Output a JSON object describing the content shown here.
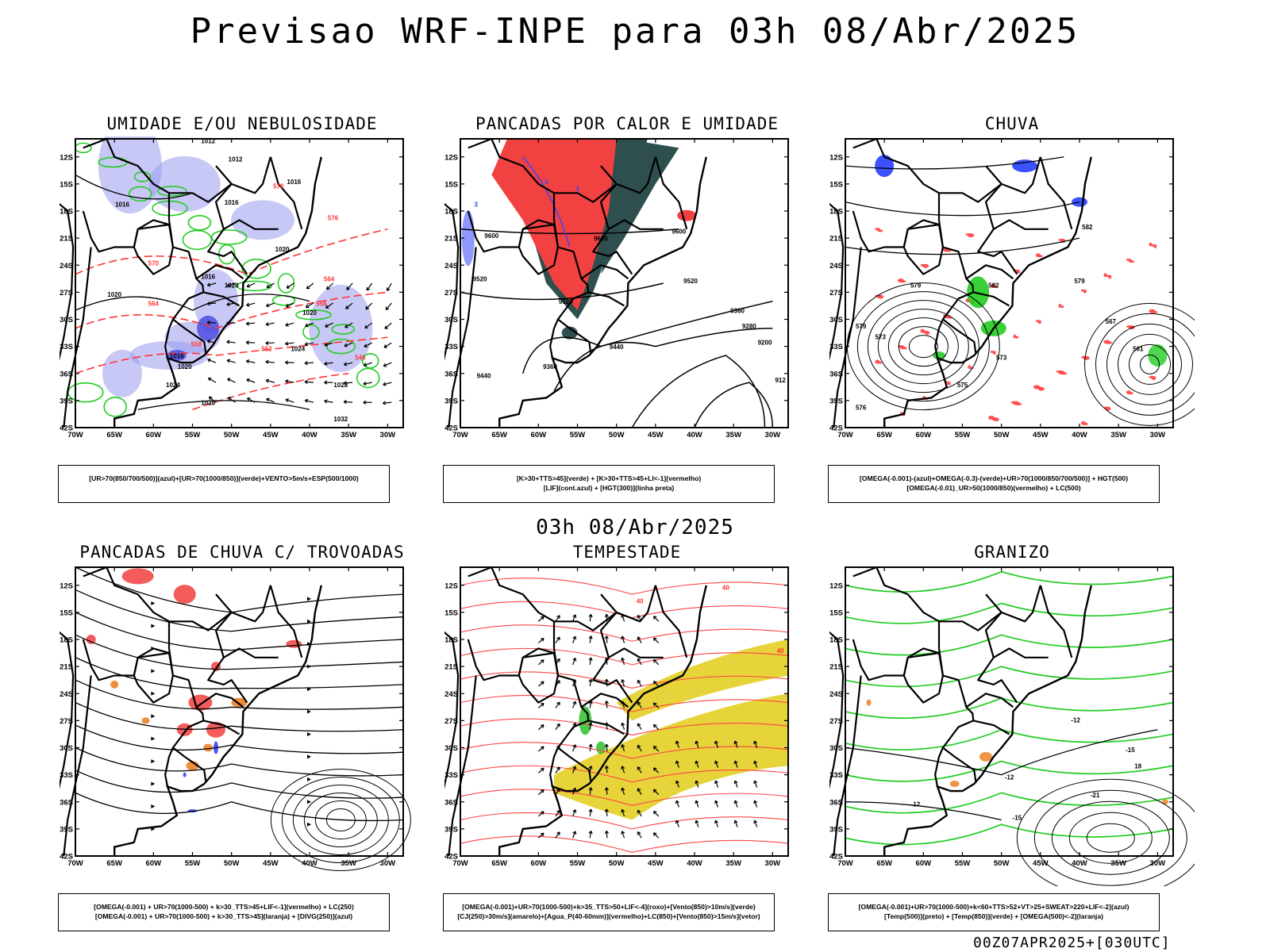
{
  "header": {
    "title": "Previsao WRF-INPE  para 03h 08/Abr/2025",
    "mid_stamp": "03h 08/Abr/2025",
    "run_stamp": "00Z07APR2025+[030UTC]"
  },
  "axes": {
    "lat_labels": [
      "12S",
      "15S",
      "18S",
      "21S",
      "24S",
      "27S",
      "30S",
      "33S",
      "36S",
      "39S",
      "42S"
    ],
    "lon_labels": [
      "70W",
      "65W",
      "60W",
      "55W",
      "50W",
      "45W",
      "40W",
      "35W",
      "30W"
    ],
    "lon_range": [
      -70,
      -28
    ],
    "lat_range": [
      -42,
      -10
    ]
  },
  "chart_data": [
    {
      "type": "map",
      "id": "umidade",
      "title": "UMIDADE E/OU NEBULOSIDADE",
      "legend": [
        "[UR>70(850/700/500)](azul)+[UR>70(1000/850)](verde)+VENTO>5m/s+ESP(500/1000)"
      ],
      "contour_labels": [
        {
          "text": "1012",
          "lon": -53,
          "lat": -10.5,
          "color": "#000000"
        },
        {
          "text": "1012",
          "lon": -49.5,
          "lat": -12.5,
          "color": "#000000"
        },
        {
          "text": "1016",
          "lon": -42,
          "lat": -15,
          "color": "#000000"
        },
        {
          "text": "1016",
          "lon": -64,
          "lat": -17.5,
          "color": "#000000"
        },
        {
          "text": "1016",
          "lon": -50,
          "lat": -17.3,
          "color": "#000000"
        },
        {
          "text": "1020",
          "lon": -43.5,
          "lat": -22.5,
          "color": "#000000"
        },
        {
          "text": "1016",
          "lon": -53,
          "lat": -25.5,
          "color": "#000000"
        },
        {
          "text": "1020",
          "lon": -50,
          "lat": -26.5,
          "color": "#000000"
        },
        {
          "text": "1020",
          "lon": -40,
          "lat": -29.5,
          "color": "#000000"
        },
        {
          "text": "1024",
          "lon": -41.5,
          "lat": -33.5,
          "color": "#000000"
        },
        {
          "text": "1016",
          "lon": -57,
          "lat": -34.3,
          "color": "#000000"
        },
        {
          "text": "1020",
          "lon": -56,
          "lat": -35.5,
          "color": "#000000"
        },
        {
          "text": "1020",
          "lon": -65,
          "lat": -27.5,
          "color": "#000000"
        },
        {
          "text": "1024",
          "lon": -57.5,
          "lat": -37.5,
          "color": "#000000"
        },
        {
          "text": "1028",
          "lon": -36,
          "lat": -37.5,
          "color": "#000000"
        },
        {
          "text": "1028",
          "lon": -53,
          "lat": -39.5,
          "color": "#000000"
        },
        {
          "text": "1032",
          "lon": -36,
          "lat": -41.3,
          "color": "#000000"
        },
        {
          "text": "570",
          "lon": -44,
          "lat": -15.5,
          "color": "#ff3333"
        },
        {
          "text": "576",
          "lon": -37,
          "lat": -19,
          "color": "#ff3333"
        },
        {
          "text": "570",
          "lon": -60,
          "lat": -24,
          "color": "#ff3333"
        },
        {
          "text": "564",
          "lon": -60,
          "lat": -28.5,
          "color": "#ff3333"
        },
        {
          "text": "558",
          "lon": -54.5,
          "lat": -33,
          "color": "#ff3333"
        },
        {
          "text": "558",
          "lon": -38.5,
          "lat": -28.5,
          "color": "#ff3333"
        },
        {
          "text": "564",
          "lon": -37.5,
          "lat": -25.8,
          "color": "#ff3333"
        },
        {
          "text": "552",
          "lon": -45.5,
          "lat": -33.5,
          "color": "#ff3333"
        },
        {
          "text": "546",
          "lon": -33.5,
          "lat": -34.5,
          "color": "#ff3333"
        }
      ]
    },
    {
      "type": "map",
      "id": "pancadas-calor",
      "title": "PANCADAS POR CALOR E UMIDADE",
      "legend": [
        "[K>30+TTS>45](verde) + [K>30+TTS>45+LI<-1](vermelho)",
        "[LIF](cont.azul) + [HGT(300)](linha preta)"
      ],
      "contour_labels": [
        {
          "text": "9600",
          "lon": -66,
          "lat": -21,
          "color": "#000000"
        },
        {
          "text": "9600",
          "lon": -52,
          "lat": -21.3,
          "color": "#000000"
        },
        {
          "text": "9600",
          "lon": -42,
          "lat": -20.5,
          "color": "#000000"
        },
        {
          "text": "9520",
          "lon": -67.5,
          "lat": -25.8,
          "color": "#000000"
        },
        {
          "text": "9520",
          "lon": -40.5,
          "lat": -26,
          "color": "#000000"
        },
        {
          "text": "9520",
          "lon": -56.5,
          "lat": -28.3,
          "color": "#000000"
        },
        {
          "text": "9360",
          "lon": -34.5,
          "lat": -29.3,
          "color": "#000000"
        },
        {
          "text": "9280",
          "lon": -33,
          "lat": -31,
          "color": "#000000"
        },
        {
          "text": "9200",
          "lon": -31,
          "lat": -32.8,
          "color": "#000000"
        },
        {
          "text": "9440",
          "lon": -50,
          "lat": -33.3,
          "color": "#000000"
        },
        {
          "text": "9360",
          "lon": -58.5,
          "lat": -35.5,
          "color": "#000000"
        },
        {
          "text": "9440",
          "lon": -67,
          "lat": -36.5,
          "color": "#000000"
        },
        {
          "text": "912",
          "lon": -29,
          "lat": -37,
          "color": "#000000"
        },
        {
          "text": "3",
          "lon": -59,
          "lat": -15,
          "color": "#3344ff"
        },
        {
          "text": "3",
          "lon": -55,
          "lat": -15.8,
          "color": "#3344ff"
        },
        {
          "text": "3",
          "lon": -68,
          "lat": -17.5,
          "color": "#3344ff"
        }
      ]
    },
    {
      "type": "map",
      "id": "chuva",
      "title": "CHUVA",
      "legend": [
        "[OMEGA(-0.001)-(azul)+OMEGA(-0.3)-(verde)+UR>70(1000/850/700/500)] + HGT(500)",
        "[OMEGA(-0.01)_UR>50(1000/850)(vermelho) + LC(500)"
      ],
      "contour_labels": [
        {
          "text": "582",
          "lon": -39,
          "lat": -20,
          "color": "#000000"
        },
        {
          "text": "579",
          "lon": -40,
          "lat": -26,
          "color": "#000000"
        },
        {
          "text": "582",
          "lon": -51,
          "lat": -26.5,
          "color": "#000000"
        },
        {
          "text": "579",
          "lon": -61,
          "lat": -26.5,
          "color": "#000000"
        },
        {
          "text": "579",
          "lon": -68,
          "lat": -31,
          "color": "#000000"
        },
        {
          "text": "573",
          "lon": -65.5,
          "lat": -32.2,
          "color": "#000000"
        },
        {
          "text": "573",
          "lon": -50,
          "lat": -34.5,
          "color": "#000000"
        },
        {
          "text": "567",
          "lon": -36,
          "lat": -30.5,
          "color": "#000000"
        },
        {
          "text": "561",
          "lon": -32.5,
          "lat": -33.5,
          "color": "#000000"
        },
        {
          "text": "575",
          "lon": -55,
          "lat": -37.5,
          "color": "#000000"
        },
        {
          "text": "576",
          "lon": -68,
          "lat": -40,
          "color": "#000000"
        }
      ]
    },
    {
      "type": "map",
      "id": "pancadas-trovoadas",
      "title": "PANCADAS DE CHUVA C/ TROVOADAS",
      "legend": [
        "[OMEGA(-0.001) + UR>70(1000-500) + k>30_TTS>45+LIF<-1](vermelho) + LC(250)",
        "[OMEGA(-0.001) + UR>70(1000-500) + k>30_TTS>45](laranja) + [DIVG(250)](azul)"
      ],
      "contour_labels": []
    },
    {
      "type": "map",
      "id": "tempestade",
      "title": "TEMPESTADE",
      "legend": [
        "[OMEGA(-0.001)+UR>70(1000-500)+k>35_TTS>50+LIF<-4](roxo)+[Vento(850)>10m/s](verde)",
        "[CJ(250)>30m/s](amarelo)+[Agua_P(40-60mm)](vermelho)+LC(850)+[Vento(850)>15m/s](vetor)"
      ],
      "contour_labels": [
        {
          "text": "40",
          "lon": -36,
          "lat": -12.5,
          "color": "#ff3333"
        },
        {
          "text": "40",
          "lon": -29,
          "lat": -19.5,
          "color": "#ff3333"
        },
        {
          "text": "40",
          "lon": -47,
          "lat": -14,
          "color": "#ff3333"
        }
      ]
    },
    {
      "type": "map",
      "id": "granizo",
      "title": "GRANIZO",
      "legend": [
        "[OMEGA(-0.001)+UR>70(1000-500)+k<60+TTS>52+VT>25+SWEAT>220+LIF<-2](azul)",
        "[Temp(500)](preto) + [Temp(850)](verde) + [OMEGA(500)<-2](laranja)"
      ],
      "contour_labels": [
        {
          "text": "-12",
          "lon": -49,
          "lat": -33.5,
          "color": "#000000"
        },
        {
          "text": "-12",
          "lon": -40.5,
          "lat": -27.2,
          "color": "#000000"
        },
        {
          "text": "-12",
          "lon": -61,
          "lat": -36.5,
          "color": "#000000"
        },
        {
          "text": "-15",
          "lon": -48,
          "lat": -38,
          "color": "#000000"
        },
        {
          "text": "-21",
          "lon": -38,
          "lat": -35.5,
          "color": "#000000"
        },
        {
          "text": "-15",
          "lon": -33.5,
          "lat": -30.5,
          "color": "#000000"
        },
        {
          "text": "18",
          "lon": -32.5,
          "lat": -32.3,
          "color": "#000000"
        }
      ]
    }
  ]
}
